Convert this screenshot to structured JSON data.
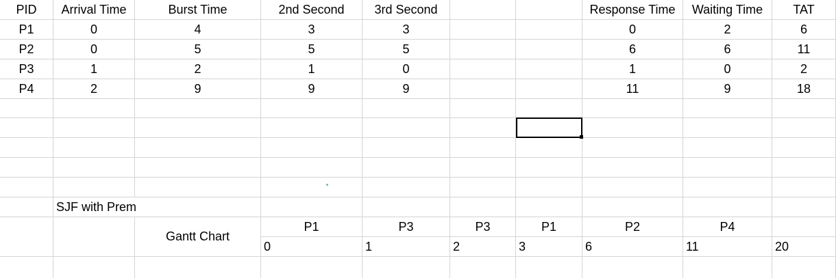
{
  "headers": [
    "PID",
    "Arrival Time",
    "Burst Time",
    "2nd Second",
    "3rd Second",
    "",
    "",
    "Response Time",
    "Waiting Time",
    "TAT"
  ],
  "rows": [
    [
      "P1",
      "0",
      "4",
      "3",
      "3",
      "",
      "",
      "0",
      "2",
      "6"
    ],
    [
      "P2",
      "0",
      "5",
      "5",
      "5",
      "",
      "",
      "6",
      "6",
      "11"
    ],
    [
      "P3",
      "1",
      "2",
      "1",
      "0",
      "",
      "",
      "1",
      "0",
      "2"
    ],
    [
      "P4",
      "2",
      "9",
      "9",
      "9",
      "",
      "",
      "11",
      "9",
      "18"
    ]
  ],
  "sjf_label": "SJF with Prem",
  "gantt": {
    "label": "Gantt Chart",
    "processes": [
      "P1",
      "P3",
      "P3",
      "P1",
      "P2",
      "P4",
      ""
    ],
    "times": [
      "0",
      "1",
      "2",
      "3",
      "6",
      "11",
      "20"
    ]
  }
}
